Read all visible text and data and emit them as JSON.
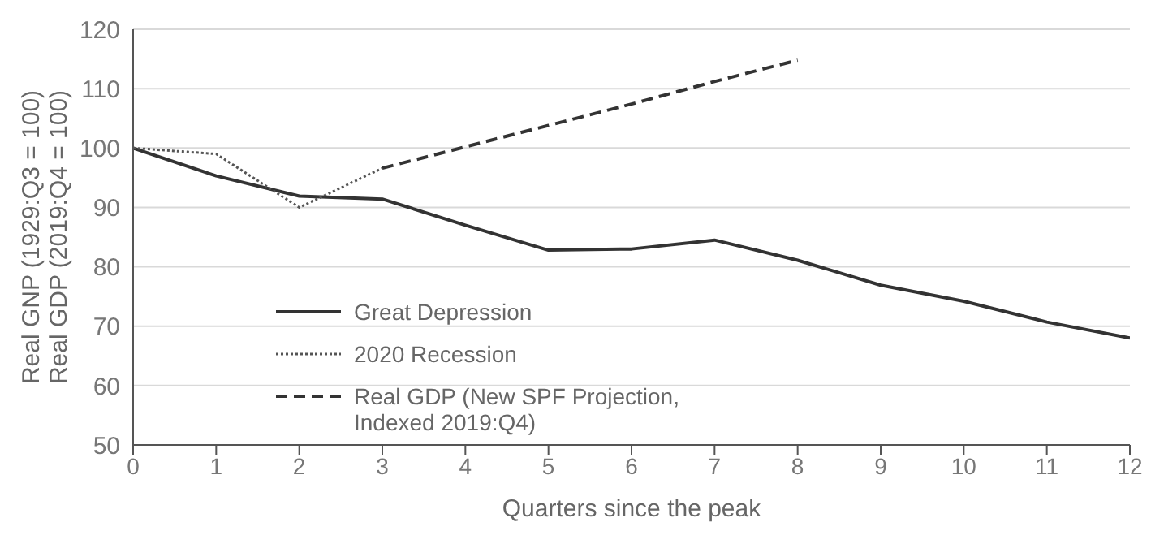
{
  "chart_data": {
    "type": "line",
    "xlabel": "Quarters since the peak",
    "ylabel": "Real GNP (1929:Q3 = 100)\nReal GDP (2019:Q4 = 100)",
    "xlim": [
      0,
      12
    ],
    "xticks": [
      0,
      1,
      2,
      3,
      4,
      5,
      6,
      7,
      8,
      9,
      10,
      11,
      12
    ],
    "ylim": [
      50,
      120
    ],
    "yticks": [
      50,
      60,
      70,
      80,
      90,
      100,
      110,
      120
    ],
    "grid": "y",
    "legend": "left",
    "marker": "none",
    "series": [
      {
        "name": "Great Depression",
        "color": "#333333",
        "line_style": "solid",
        "x": [
          0,
          1,
          2,
          3,
          4,
          5,
          6,
          7,
          8,
          9,
          10,
          11,
          12
        ],
        "values": [
          100,
          95.3,
          91.9,
          91.4,
          87,
          82.8,
          83,
          84.5,
          81.1,
          76.9,
          74.2,
          70.7,
          68
        ]
      },
      {
        "name": "2020 Recession",
        "color": "#555555",
        "line_style": "dotted",
        "x": [
          0,
          1,
          2,
          3
        ],
        "values": [
          100,
          99,
          90,
          96.6
        ]
      },
      {
        "name": "Real GDP (New SPF Projection, Indexed 2019:Q4)",
        "color": "#333333",
        "line_style": "dashed",
        "x": [
          3,
          4,
          5,
          6,
          7,
          8
        ],
        "values": [
          96.6,
          100.2,
          103.8,
          107.4,
          111.2,
          114.8
        ]
      }
    ]
  }
}
